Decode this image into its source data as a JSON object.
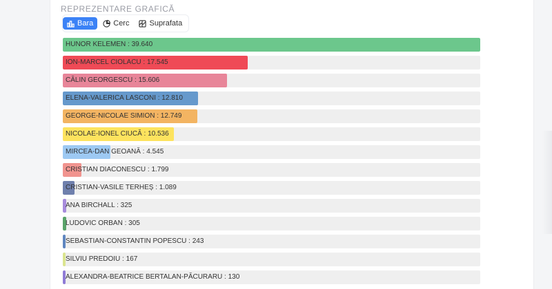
{
  "section_title": "REPREZENTARE GRAFICĂ",
  "tabs": [
    {
      "label": "Bara",
      "icon": "bar-chart-icon",
      "active": true
    },
    {
      "label": "Cerc",
      "icon": "pie-chart-icon",
      "active": false
    },
    {
      "label": "Suprafata",
      "icon": "area-chart-icon",
      "active": false
    }
  ],
  "chart_data": {
    "type": "bar",
    "orientation": "horizontal",
    "max": 39640,
    "separator": " : ",
    "bars": [
      {
        "name": "HUNOR KELEMEN",
        "value": 39640,
        "display": "39.640",
        "color": "#6cc78c"
      },
      {
        "name": "ION-MARCEL CIOLACU",
        "value": 17545,
        "display": "17.545",
        "color": "#ef4a56"
      },
      {
        "name": "CĂLIN GEORGESCU",
        "value": 15606,
        "display": "15.606",
        "color": "#e88599"
      },
      {
        "name": "ELENA-VALERICA LASCONI",
        "value": 12810,
        "display": "12.810",
        "color": "#6699cc"
      },
      {
        "name": "GEORGE-NICOLAE SIMION",
        "value": 12749,
        "display": "12.749",
        "color": "#f3b462"
      },
      {
        "name": "NICOLAE-IONEL CIUCĂ",
        "value": 10536,
        "display": "10.536",
        "color": "#fde35e"
      },
      {
        "name": "MIRCEA-DAN GEOANĂ",
        "value": 4545,
        "display": "4.545",
        "color": "#9dc9f3"
      },
      {
        "name": "CRISTIAN DIACONESCU",
        "value": 1799,
        "display": "1.799",
        "color": "#f1948f"
      },
      {
        "name": "CRISTIAN-VASILE TERHEȘ",
        "value": 1089,
        "display": "1.089",
        "color": "#6f80ad"
      },
      {
        "name": "ANA BIRCHALL",
        "value": 325,
        "display": "325",
        "color": "#a78bdc"
      },
      {
        "name": "LUDOVIC ORBAN",
        "value": 305,
        "display": "305",
        "color": "#5aa36a"
      },
      {
        "name": "SEBASTIAN-CONSTANTIN POPESCU",
        "value": 243,
        "display": "243",
        "color": "#5f86c0"
      },
      {
        "name": "SILVIU PREDOIU",
        "value": 167,
        "display": "167",
        "color": "#dbe58f"
      },
      {
        "name": "ALEXANDRA-BEATRICE BERTALAN-PĂCURARU",
        "value": 130,
        "display": "130",
        "color": "#8f7bd6"
      }
    ]
  }
}
